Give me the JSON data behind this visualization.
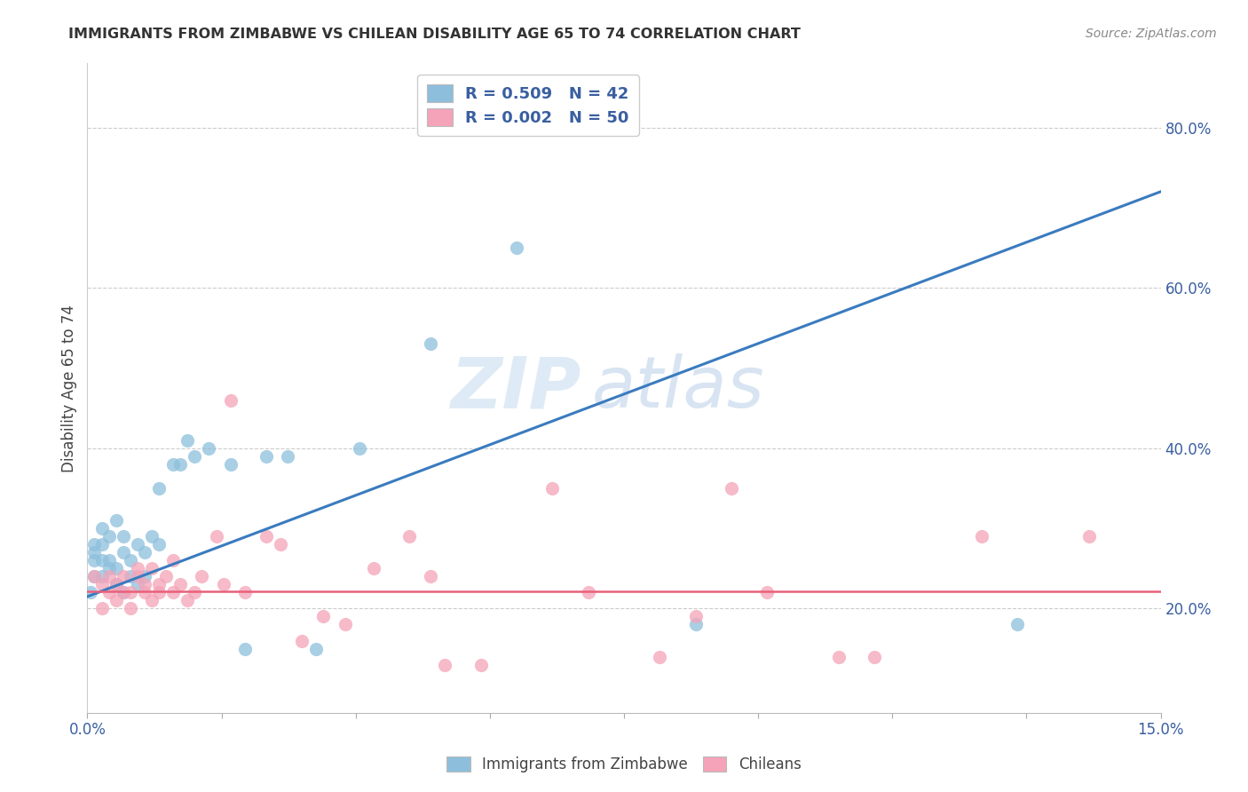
{
  "title": "IMMIGRANTS FROM ZIMBABWE VS CHILEAN DISABILITY AGE 65 TO 74 CORRELATION CHART",
  "source": "Source: ZipAtlas.com",
  "ylabel": "Disability Age 65 to 74",
  "ylabel_right_ticks": [
    "20.0%",
    "40.0%",
    "60.0%",
    "80.0%"
  ],
  "ylabel_right_vals": [
    0.2,
    0.4,
    0.6,
    0.8
  ],
  "x_min": 0.0,
  "x_max": 0.15,
  "y_min": 0.07,
  "y_max": 0.88,
  "legend_r1": "R = 0.509",
  "legend_n1": "N = 42",
  "legend_r2": "R = 0.002",
  "legend_n2": "N = 50",
  "color_blue": "#8dbfdd",
  "color_pink": "#f4a3b8",
  "color_blue_line": "#3a7bbf",
  "color_pink_line": "#e8607a",
  "watermark_zip": "ZIP",
  "watermark_atlas": "atlas",
  "zimbabwe_x": [
    0.0005,
    0.001,
    0.001,
    0.001,
    0.001,
    0.002,
    0.002,
    0.002,
    0.002,
    0.003,
    0.003,
    0.003,
    0.004,
    0.004,
    0.004,
    0.005,
    0.005,
    0.005,
    0.006,
    0.006,
    0.007,
    0.007,
    0.008,
    0.008,
    0.009,
    0.01,
    0.01,
    0.012,
    0.013,
    0.014,
    0.015,
    0.017,
    0.02,
    0.022,
    0.025,
    0.028,
    0.032,
    0.038,
    0.048,
    0.06,
    0.085,
    0.13
  ],
  "zimbabwe_y": [
    0.22,
    0.24,
    0.26,
    0.27,
    0.28,
    0.24,
    0.26,
    0.28,
    0.3,
    0.25,
    0.26,
    0.29,
    0.23,
    0.25,
    0.31,
    0.22,
    0.27,
    0.29,
    0.24,
    0.26,
    0.23,
    0.28,
    0.24,
    0.27,
    0.29,
    0.28,
    0.35,
    0.38,
    0.38,
    0.41,
    0.39,
    0.4,
    0.38,
    0.15,
    0.39,
    0.39,
    0.15,
    0.4,
    0.53,
    0.65,
    0.18,
    0.18
  ],
  "chilean_x": [
    0.001,
    0.002,
    0.002,
    0.003,
    0.003,
    0.004,
    0.004,
    0.005,
    0.005,
    0.006,
    0.006,
    0.007,
    0.007,
    0.008,
    0.008,
    0.009,
    0.009,
    0.01,
    0.01,
    0.011,
    0.012,
    0.012,
    0.013,
    0.014,
    0.015,
    0.016,
    0.018,
    0.019,
    0.02,
    0.022,
    0.025,
    0.027,
    0.03,
    0.033,
    0.036,
    0.04,
    0.045,
    0.048,
    0.05,
    0.055,
    0.065,
    0.07,
    0.08,
    0.085,
    0.09,
    0.095,
    0.105,
    0.11,
    0.125,
    0.14
  ],
  "chilean_y": [
    0.24,
    0.2,
    0.23,
    0.22,
    0.24,
    0.21,
    0.23,
    0.22,
    0.24,
    0.2,
    0.22,
    0.24,
    0.25,
    0.22,
    0.23,
    0.21,
    0.25,
    0.22,
    0.23,
    0.24,
    0.22,
    0.26,
    0.23,
    0.21,
    0.22,
    0.24,
    0.29,
    0.23,
    0.46,
    0.22,
    0.29,
    0.28,
    0.16,
    0.19,
    0.18,
    0.25,
    0.29,
    0.24,
    0.13,
    0.13,
    0.35,
    0.22,
    0.14,
    0.19,
    0.35,
    0.22,
    0.14,
    0.14,
    0.29,
    0.29
  ]
}
